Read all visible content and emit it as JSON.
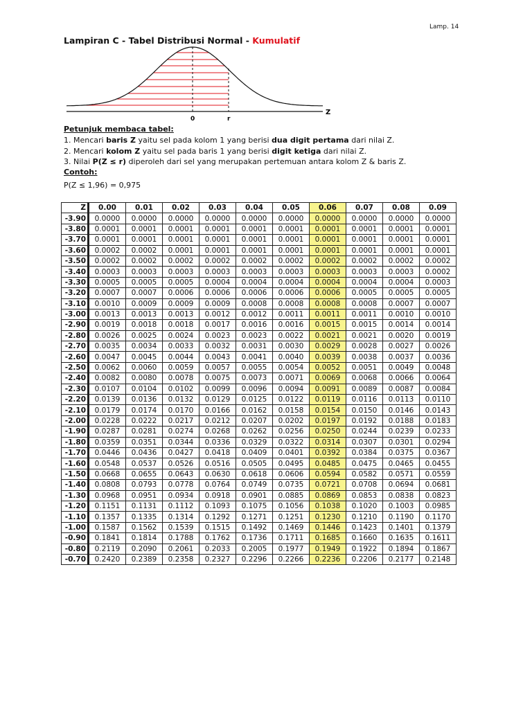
{
  "page_label": "Lamp. 14",
  "title": {
    "main": "Lampiran C - Tabel Distribusi Normal - ",
    "highlight": "Kumulatif"
  },
  "figure": {
    "axis_label": "Z",
    "tick_zero": "0",
    "tick_r": "r",
    "shading_color": "#e0141e"
  },
  "instructions": {
    "heading": "Petunjuk membaca tabel:",
    "step1": {
      "a": "1. Mencari ",
      "b": "baris Z",
      "c": " yaitu sel pada kolom 1 yang berisi ",
      "d": "dua digit pertama",
      "e": " dari nilai Z."
    },
    "step2": {
      "a": "2. Mencari ",
      "b": "kolom Z",
      "c": " yaitu sel pada baris 1 yang berisi ",
      "d": "digit ketiga",
      "e": " dari nilai Z."
    },
    "step3": {
      "a": "3. Nilai ",
      "b": "P(Z ≤ r)",
      "c": " diperoleh dari sel yang merupakan pertemuan antara kolom Z & baris Z."
    },
    "example_heading": "Contoh:",
    "example": "P(Z ≤ 1,96) = 0,975"
  },
  "table": {
    "highlight_color": "#f8f48e",
    "highlight_column": "0.06",
    "headers": [
      "Z",
      "0.00",
      "0.01",
      "0.02",
      "0.03",
      "0.04",
      "0.05",
      "0.06",
      "0.07",
      "0.08",
      "0.09"
    ],
    "rows": [
      [
        "-3.90",
        "0.0000",
        "0.0000",
        "0.0000",
        "0.0000",
        "0.0000",
        "0.0000",
        "0.0000",
        "0.0000",
        "0.0000",
        "0.0000"
      ],
      [
        "-3.80",
        "0.0001",
        "0.0001",
        "0.0001",
        "0.0001",
        "0.0001",
        "0.0001",
        "0.0001",
        "0.0001",
        "0.0001",
        "0.0001"
      ],
      [
        "-3.70",
        "0.0001",
        "0.0001",
        "0.0001",
        "0.0001",
        "0.0001",
        "0.0001",
        "0.0001",
        "0.0001",
        "0.0001",
        "0.0001"
      ],
      [
        "-3.60",
        "0.0002",
        "0.0002",
        "0.0001",
        "0.0001",
        "0.0001",
        "0.0001",
        "0.0001",
        "0.0001",
        "0.0001",
        "0.0001"
      ],
      [
        "-3.50",
        "0.0002",
        "0.0002",
        "0.0002",
        "0.0002",
        "0.0002",
        "0.0002",
        "0.0002",
        "0.0002",
        "0.0002",
        "0.0002"
      ],
      [
        "-3.40",
        "0.0003",
        "0.0003",
        "0.0003",
        "0.0003",
        "0.0003",
        "0.0003",
        "0.0003",
        "0.0003",
        "0.0003",
        "0.0002"
      ],
      [
        "-3.30",
        "0.0005",
        "0.0005",
        "0.0005",
        "0.0004",
        "0.0004",
        "0.0004",
        "0.0004",
        "0.0004",
        "0.0004",
        "0.0003"
      ],
      [
        "-3.20",
        "0.0007",
        "0.0007",
        "0.0006",
        "0.0006",
        "0.0006",
        "0.0006",
        "0.0006",
        "0.0005",
        "0.0005",
        "0.0005"
      ],
      [
        "-3.10",
        "0.0010",
        "0.0009",
        "0.0009",
        "0.0009",
        "0.0008",
        "0.0008",
        "0.0008",
        "0.0008",
        "0.0007",
        "0.0007"
      ],
      [
        "-3.00",
        "0.0013",
        "0.0013",
        "0.0013",
        "0.0012",
        "0.0012",
        "0.0011",
        "0.0011",
        "0.0011",
        "0.0010",
        "0.0010"
      ],
      [
        "-2.90",
        "0.0019",
        "0.0018",
        "0.0018",
        "0.0017",
        "0.0016",
        "0.0016",
        "0.0015",
        "0.0015",
        "0.0014",
        "0.0014"
      ],
      [
        "-2.80",
        "0.0026",
        "0.0025",
        "0.0024",
        "0.0023",
        "0.0023",
        "0.0022",
        "0.0021",
        "0.0021",
        "0.0020",
        "0.0019"
      ],
      [
        "-2.70",
        "0.0035",
        "0.0034",
        "0.0033",
        "0.0032",
        "0.0031",
        "0.0030",
        "0.0029",
        "0.0028",
        "0.0027",
        "0.0026"
      ],
      [
        "-2.60",
        "0.0047",
        "0.0045",
        "0.0044",
        "0.0043",
        "0.0041",
        "0.0040",
        "0.0039",
        "0.0038",
        "0.0037",
        "0.0036"
      ],
      [
        "-2.50",
        "0.0062",
        "0.0060",
        "0.0059",
        "0.0057",
        "0.0055",
        "0.0054",
        "0.0052",
        "0.0051",
        "0.0049",
        "0.0048"
      ],
      [
        "-2.40",
        "0.0082",
        "0.0080",
        "0.0078",
        "0.0075",
        "0.0073",
        "0.0071",
        "0.0069",
        "0.0068",
        "0.0066",
        "0.0064"
      ],
      [
        "-2.30",
        "0.0107",
        "0.0104",
        "0.0102",
        "0.0099",
        "0.0096",
        "0.0094",
        "0.0091",
        "0.0089",
        "0.0087",
        "0.0084"
      ],
      [
        "-2.20",
        "0.0139",
        "0.0136",
        "0.0132",
        "0.0129",
        "0.0125",
        "0.0122",
        "0.0119",
        "0.0116",
        "0.0113",
        "0.0110"
      ],
      [
        "-2.10",
        "0.0179",
        "0.0174",
        "0.0170",
        "0.0166",
        "0.0162",
        "0.0158",
        "0.0154",
        "0.0150",
        "0.0146",
        "0.0143"
      ],
      [
        "-2.00",
        "0.0228",
        "0.0222",
        "0.0217",
        "0.0212",
        "0.0207",
        "0.0202",
        "0.0197",
        "0.0192",
        "0.0188",
        "0.0183"
      ],
      [
        "-1.90",
        "0.0287",
        "0.0281",
        "0.0274",
        "0.0268",
        "0.0262",
        "0.0256",
        "0.0250",
        "0.0244",
        "0.0239",
        "0.0233"
      ],
      [
        "-1.80",
        "0.0359",
        "0.0351",
        "0.0344",
        "0.0336",
        "0.0329",
        "0.0322",
        "0.0314",
        "0.0307",
        "0.0301",
        "0.0294"
      ],
      [
        "-1.70",
        "0.0446",
        "0.0436",
        "0.0427",
        "0.0418",
        "0.0409",
        "0.0401",
        "0.0392",
        "0.0384",
        "0.0375",
        "0.0367"
      ],
      [
        "-1.60",
        "0.0548",
        "0.0537",
        "0.0526",
        "0.0516",
        "0.0505",
        "0.0495",
        "0.0485",
        "0.0475",
        "0.0465",
        "0.0455"
      ],
      [
        "-1.50",
        "0.0668",
        "0.0655",
        "0.0643",
        "0.0630",
        "0.0618",
        "0.0606",
        "0.0594",
        "0.0582",
        "0.0571",
        "0.0559"
      ],
      [
        "-1.40",
        "0.0808",
        "0.0793",
        "0.0778",
        "0.0764",
        "0.0749",
        "0.0735",
        "0.0721",
        "0.0708",
        "0.0694",
        "0.0681"
      ],
      [
        "-1.30",
        "0.0968",
        "0.0951",
        "0.0934",
        "0.0918",
        "0.0901",
        "0.0885",
        "0.0869",
        "0.0853",
        "0.0838",
        "0.0823"
      ],
      [
        "-1.20",
        "0.1151",
        "0.1131",
        "0.1112",
        "0.1093",
        "0.1075",
        "0.1056",
        "0.1038",
        "0.1020",
        "0.1003",
        "0.0985"
      ],
      [
        "-1.10",
        "0.1357",
        "0.1335",
        "0.1314",
        "0.1292",
        "0.1271",
        "0.1251",
        "0.1230",
        "0.1210",
        "0.1190",
        "0.1170"
      ],
      [
        "-1.00",
        "0.1587",
        "0.1562",
        "0.1539",
        "0.1515",
        "0.1492",
        "0.1469",
        "0.1446",
        "0.1423",
        "0.1401",
        "0.1379"
      ],
      [
        "-0.90",
        "0.1841",
        "0.1814",
        "0.1788",
        "0.1762",
        "0.1736",
        "0.1711",
        "0.1685",
        "0.1660",
        "0.1635",
        "0.1611"
      ],
      [
        "-0.80",
        "0.2119",
        "0.2090",
        "0.2061",
        "0.2033",
        "0.2005",
        "0.1977",
        "0.1949",
        "0.1922",
        "0.1894",
        "0.1867"
      ],
      [
        "-0.70",
        "0.2420",
        "0.2389",
        "0.2358",
        "0.2327",
        "0.2296",
        "0.2266",
        "0.2236",
        "0.2206",
        "0.2177",
        "0.2148"
      ]
    ]
  }
}
